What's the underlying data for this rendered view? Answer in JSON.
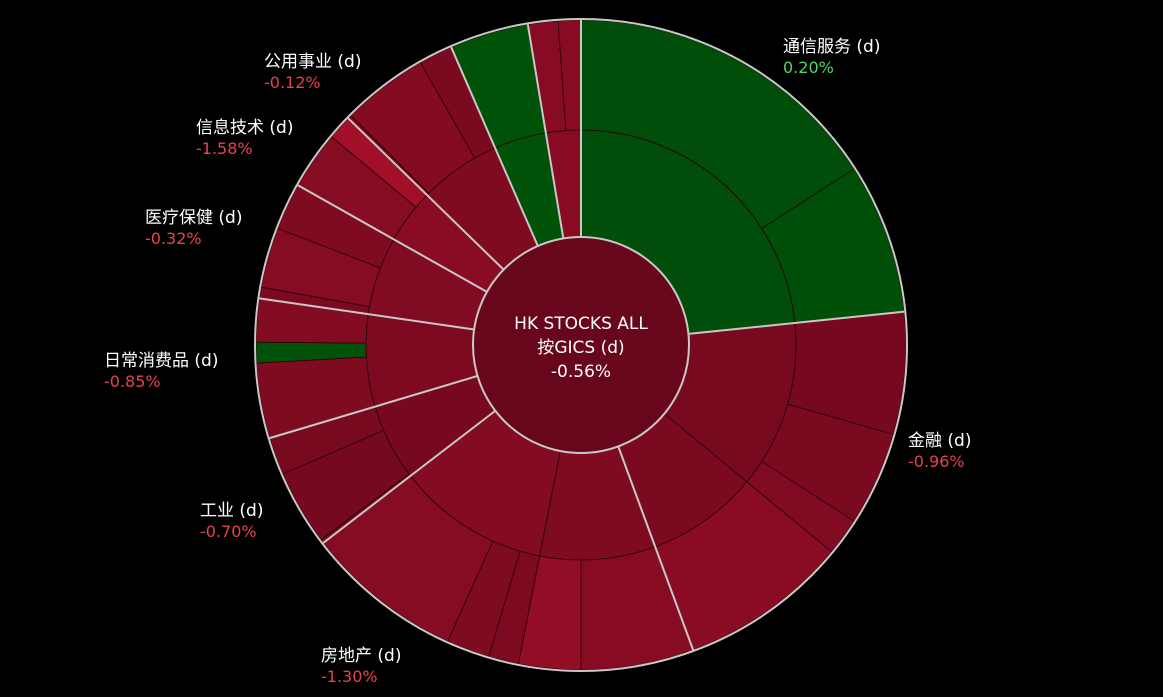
{
  "chart_data": {
    "type": "sunburst",
    "title": "HK STOCKS ALL",
    "subtitle": "按GICS (d)",
    "total_change": "-0.56%",
    "colors": {
      "background": "#000000",
      "positive_text": "#4cd964",
      "negative_text": "#e8414f",
      "separator": "#c8c8c8"
    },
    "sectors": [
      {
        "name": "通信服务 (d)",
        "change": "0.20%",
        "change_value": 0.2,
        "weight": 25.0,
        "subs": [
          {
            "weight": 25.0,
            "change": 0.25,
            "leaves": [
              {
                "weight": 17.0,
                "change": 0.25
              },
              {
                "weight": 8.0,
                "change": 0.3
              }
            ]
          }
        ]
      },
      {
        "name": "金融 (d)",
        "change": "-0.96%",
        "change_value": -0.96,
        "weight": 22.5,
        "subs": [
          {
            "weight": 13.5,
            "change": -0.95,
            "leaves": [
              {
                "weight": 6.5,
                "change": -0.9
              },
              {
                "weight": 5.0,
                "change": -1.0
              },
              {
                "weight": 2.0,
                "change": -1.15
              }
            ]
          },
          {
            "weight": 9.0,
            "change": -1.0,
            "leaves": [
              {
                "weight": 9.0,
                "change": -1.35
              }
            ]
          }
        ]
      },
      {
        "name": "房地产 (d)",
        "change": "-1.30%",
        "change_value": -1.3,
        "weight": 21.6,
        "subs": [
          {
            "weight": 9.3,
            "change": -1.1,
            "leaves": [
              {
                "weight": 6.0,
                "change": -1.3
              },
              {
                "weight": 3.3,
                "change": -1.55
              }
            ]
          },
          {
            "weight": 12.3,
            "change": -1.2,
            "leaves": [
              {
                "weight": 1.6,
                "change": -1.05
              },
              {
                "weight": 2.3,
                "change": -1.1
              },
              {
                "weight": 8.4,
                "change": -1.25
              }
            ]
          }
        ]
      },
      {
        "name": "工业 (d)",
        "change": "-0.70%",
        "change_value": -0.7,
        "weight": 6.2,
        "subs": [
          {
            "weight": 6.2,
            "change": -0.9,
            "leaves": [
              {
                "weight": 0.2,
                "change": -0.8
              },
              {
                "weight": 4.0,
                "change": -0.85
              },
              {
                "weight": 2.0,
                "change": -0.95
              }
            ]
          }
        ]
      },
      {
        "name": "日常消费品 (d)",
        "change": "-0.85%",
        "change_value": -0.85,
        "weight": 7.4,
        "subs": [
          {
            "weight": 7.4,
            "change": -1.05,
            "leaves": [
              {
                "weight": 4.0,
                "change": -1.1
              },
              {
                "weight": 1.1,
                "change": 0.35
              },
              {
                "weight": 2.3,
                "change": -1.2
              }
            ]
          }
        ]
      },
      {
        "name": "医疗保健 (d)",
        "change": "-0.32%",
        "change_value": -0.32,
        "weight": 6.3,
        "subs": [
          {
            "weight": 6.3,
            "change": -1.15,
            "leaves": [
              {
                "weight": 0.6,
                "change": -1.0
              },
              {
                "weight": 3.2,
                "change": -1.25
              },
              {
                "weight": 2.5,
                "change": -1.1
              }
            ]
          }
        ]
      },
      {
        "name": "信息技术 (d)",
        "change": "-1.58%",
        "change_value": -1.58,
        "weight": 4.4,
        "subs": [
          {
            "weight": 4.4,
            "change": -1.35,
            "leaves": [
              {
                "weight": 3.1,
                "change": -1.25
              },
              {
                "weight": 1.3,
                "change": -1.9
              }
            ]
          }
        ]
      },
      {
        "name": "公用事业 (d)",
        "change": "-0.12%",
        "change_value": -0.12,
        "weight": 6.6,
        "subs": [
          {
            "weight": 6.6,
            "change": -1.1,
            "leaves": [
              {
                "weight": 0.2,
                "change": -0.9
              },
              {
                "weight": 4.6,
                "change": -1.2
              },
              {
                "weight": 1.8,
                "change": -1.0
              }
            ]
          }
        ]
      },
      {
        "name": "",
        "change": "",
        "change_value": 0.4,
        "weight": 4.2,
        "subs": [
          {
            "weight": 4.2,
            "change": 0.4,
            "leaves": [
              {
                "weight": 4.2,
                "change": 0.4
              }
            ]
          }
        ]
      },
      {
        "name": "",
        "change": "",
        "change_value": -1.3,
        "weight": 2.8,
        "subs": [
          {
            "weight": 2.8,
            "change": -1.3,
            "leaves": [
              {
                "weight": 1.6,
                "change": -1.3
              },
              {
                "weight": 1.2,
                "change": -1.3
              }
            ]
          }
        ]
      }
    ]
  }
}
